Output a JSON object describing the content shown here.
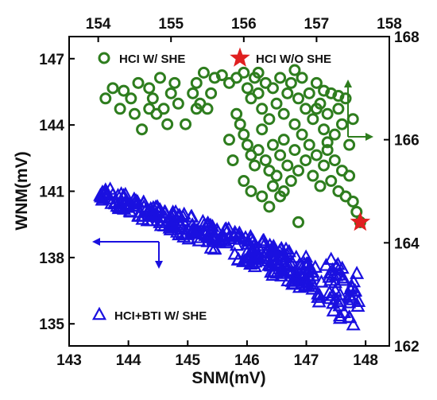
{
  "chart_data": {
    "type": "scatter",
    "title": "",
    "xlabel": "SNM(mV)",
    "ylabel": "WNM(mV)",
    "xlim": [
      143,
      148.4
    ],
    "ylim": [
      134,
      148
    ],
    "x_ticks": [
      143,
      144,
      145,
      146,
      147,
      148
    ],
    "y_ticks": [
      135,
      138,
      141,
      144,
      147
    ],
    "x2lim": [
      153.6,
      158
    ],
    "y2lim": [
      162,
      168
    ],
    "x2_ticks": [
      154,
      155,
      156,
      157,
      158
    ],
    "y2_ticks": [
      162,
      164,
      166,
      168
    ],
    "grid": false,
    "legend_placement": "inside",
    "series": [
      {
        "name": "HCI W/ SHE",
        "axes": "top-right",
        "marker": "circle-open",
        "color": "#2e7d1e",
        "points": [
          [
            154.1,
            166.8
          ],
          [
            154.2,
            167.0
          ],
          [
            154.3,
            166.6
          ],
          [
            154.35,
            166.95
          ],
          [
            154.45,
            166.8
          ],
          [
            154.5,
            166.5
          ],
          [
            154.55,
            167.1
          ],
          [
            154.7,
            167.0
          ],
          [
            154.75,
            166.8
          ],
          [
            154.8,
            166.5
          ],
          [
            154.85,
            167.2
          ],
          [
            154.9,
            166.6
          ],
          [
            154.95,
            166.3
          ],
          [
            155.0,
            166.9
          ],
          [
            155.05,
            167.1
          ],
          [
            155.1,
            166.7
          ],
          [
            154.6,
            166.2
          ],
          [
            154.7,
            166.6
          ],
          [
            155.3,
            166.9
          ],
          [
            155.35,
            167.1
          ],
          [
            155.4,
            166.7
          ],
          [
            155.35,
            166.6
          ],
          [
            155.7,
            167.25
          ],
          [
            155.8,
            167.1
          ],
          [
            155.9,
            167.2
          ],
          [
            156.0,
            167.3
          ],
          [
            156.05,
            167.0
          ],
          [
            156.1,
            166.8
          ],
          [
            156.15,
            167.2
          ],
          [
            156.2,
            166.9
          ],
          [
            156.25,
            166.6
          ],
          [
            156.3,
            167.1
          ],
          [
            156.35,
            166.4
          ],
          [
            156.4,
            167.0
          ],
          [
            156.45,
            166.7
          ],
          [
            156.5,
            167.2
          ],
          [
            156.55,
            166.5
          ],
          [
            156.6,
            166.9
          ],
          [
            156.65,
            167.1
          ],
          [
            156.7,
            166.3
          ],
          [
            156.75,
            166.8
          ],
          [
            156.8,
            167.2
          ],
          [
            156.85,
            166.6
          ],
          [
            156.9,
            166.9
          ],
          [
            156.95,
            166.4
          ],
          [
            157.0,
            167.1
          ],
          [
            157.05,
            166.7
          ],
          [
            157.1,
            166.2
          ],
          [
            157.15,
            166.5
          ],
          [
            157.2,
            166.9
          ],
          [
            157.25,
            166.1
          ],
          [
            157.3,
            166.6
          ],
          [
            157.35,
            166.3
          ],
          [
            157.4,
            166.8
          ],
          [
            157.45,
            165.9
          ],
          [
            157.5,
            166.4
          ],
          [
            155.9,
            166.5
          ],
          [
            155.95,
            166.3
          ],
          [
            156.0,
            166.1
          ],
          [
            156.05,
            165.9
          ],
          [
            156.1,
            165.7
          ],
          [
            156.15,
            165.5
          ],
          [
            156.2,
            165.8
          ],
          [
            156.25,
            166.2
          ],
          [
            156.3,
            165.6
          ],
          [
            156.35,
            165.4
          ],
          [
            156.4,
            165.9
          ],
          [
            156.45,
            165.3
          ],
          [
            156.5,
            165.7
          ],
          [
            156.55,
            166.0
          ],
          [
            156.6,
            165.5
          ],
          [
            156.65,
            165.2
          ],
          [
            156.7,
            165.8
          ],
          [
            156.75,
            165.4
          ],
          [
            156.8,
            166.1
          ],
          [
            156.85,
            165.6
          ],
          [
            156.9,
            165.9
          ],
          [
            156.95,
            165.3
          ],
          [
            157.0,
            165.7
          ],
          [
            157.05,
            165.1
          ],
          [
            157.1,
            165.5
          ],
          [
            157.15,
            165.8
          ],
          [
            157.2,
            165.2
          ],
          [
            157.25,
            165.6
          ],
          [
            157.3,
            165.0
          ],
          [
            157.35,
            165.4
          ],
          [
            157.4,
            164.9
          ],
          [
            157.45,
            165.3
          ],
          [
            157.5,
            164.8
          ],
          [
            157.55,
            164.6
          ],
          [
            157.6,
            164.4
          ],
          [
            155.8,
            166.0
          ],
          [
            155.85,
            165.6
          ],
          [
            156.0,
            165.2
          ],
          [
            156.1,
            165.0
          ],
          [
            156.25,
            164.9
          ],
          [
            156.4,
            165.1
          ],
          [
            156.5,
            164.9
          ],
          [
            156.35,
            164.7
          ],
          [
            156.75,
            164.4
          ],
          [
            155.5,
            166.6
          ],
          [
            155.55,
            166.9
          ],
          [
            155.2,
            166.3
          ],
          [
            155.6,
            167.2
          ],
          [
            155.45,
            167.3
          ],
          [
            156.2,
            167.3
          ],
          [
            156.7,
            167.35
          ],
          [
            157.0,
            166.6
          ],
          [
            157.1,
            166.95
          ],
          [
            157.3,
            166.85
          ],
          [
            157.15,
            165.95
          ],
          [
            156.55,
            165.0
          ]
        ]
      },
      {
        "name": "HCI W/O SHE",
        "axes": "top-right",
        "marker": "star",
        "color": "#e02020",
        "points": [
          [
            157.6,
            164.4
          ]
        ]
      },
      {
        "name": "HCI+BTI W/ SHE",
        "axes": "bottom-left",
        "marker": "triangle-open",
        "color": "#1a10e0",
        "points": []
      }
    ]
  }
}
